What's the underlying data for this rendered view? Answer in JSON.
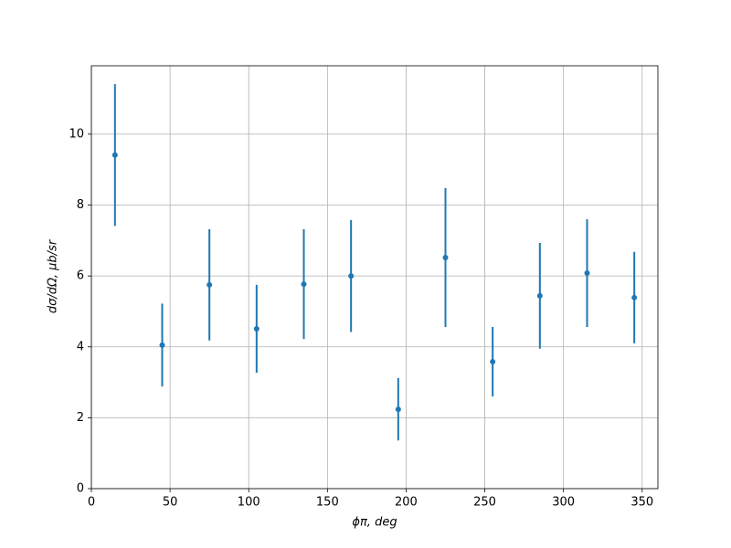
{
  "chart_data": {
    "type": "errorbar",
    "x_label": "ϕπ, deg",
    "y_label": "dσ/dΩ, μb/sr",
    "x": [
      15,
      45,
      75,
      105,
      135,
      165,
      195,
      225,
      255,
      285,
      315,
      345
    ],
    "series": [
      {
        "color": "#1f77b4",
        "values": [
          9.41,
          4.05,
          5.75,
          4.51,
          5.77,
          6.0,
          2.24,
          6.52,
          3.58,
          5.44,
          6.08,
          5.39
        ],
        "errors": [
          2.0,
          1.17,
          1.57,
          1.24,
          1.55,
          1.58,
          0.88,
          1.96,
          0.98,
          1.49,
          1.52,
          1.29
        ]
      }
    ],
    "xlim": [
      0,
      360
    ],
    "ylim": [
      0,
      11.93
    ],
    "xticks": [
      0,
      50,
      100,
      150,
      200,
      250,
      300,
      350
    ],
    "yticks": [
      0,
      2,
      4,
      6,
      8,
      10
    ],
    "grid": true
  }
}
